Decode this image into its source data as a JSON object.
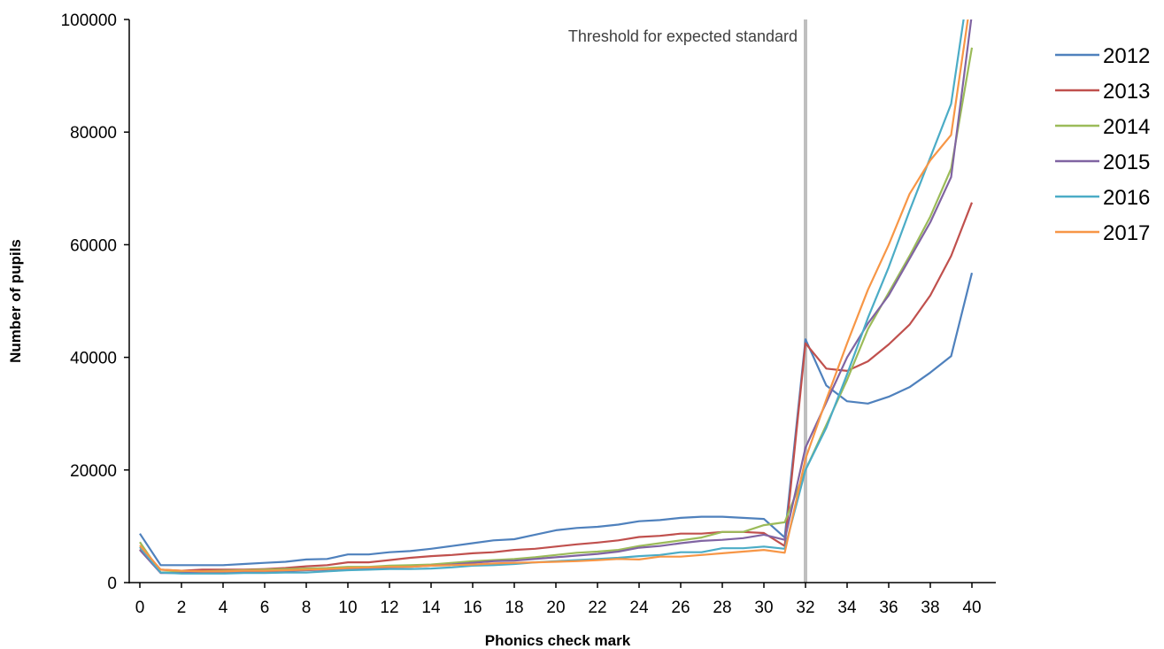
{
  "chart_data": {
    "type": "line",
    "title": "",
    "xlabel": "Phonics check mark",
    "ylabel": "Number of pupils",
    "xlim": [
      0,
      40
    ],
    "ylim": [
      0,
      100000
    ],
    "x_ticks": [
      0,
      2,
      4,
      6,
      8,
      10,
      12,
      14,
      16,
      18,
      20,
      22,
      24,
      26,
      28,
      30,
      32,
      34,
      36,
      38,
      40
    ],
    "y_ticks": [
      0,
      20000,
      40000,
      60000,
      80000,
      100000
    ],
    "grid": false,
    "legend_position": "right",
    "threshold": {
      "x": 32,
      "label": "Threshold for expected standard",
      "color": "#bfbfbf"
    },
    "x": [
      0,
      1,
      2,
      3,
      4,
      5,
      6,
      7,
      8,
      9,
      10,
      11,
      12,
      13,
      14,
      15,
      16,
      17,
      18,
      19,
      20,
      21,
      22,
      23,
      24,
      25,
      26,
      27,
      28,
      29,
      30,
      31,
      32,
      33,
      34,
      35,
      36,
      37,
      38,
      39,
      40
    ],
    "series": [
      {
        "name": "2012",
        "color": "#4f81bd",
        "values": [
          8700,
          3100,
          3100,
          3100,
          3100,
          3300,
          3500,
          3700,
          4100,
          4200,
          5000,
          5000,
          5400,
          5600,
          6000,
          6500,
          7000,
          7500,
          7700,
          8500,
          9300,
          9700,
          9900,
          10300,
          10900,
          11100,
          11500,
          11700,
          11700,
          11500,
          11300,
          8000,
          43200,
          35000,
          32200,
          31800,
          33000,
          34700,
          37300,
          40200,
          55000
        ]
      },
      {
        "name": "2013",
        "color": "#c0504d",
        "values": [
          5900,
          2300,
          2100,
          2300,
          2300,
          2300,
          2400,
          2600,
          2900,
          3100,
          3600,
          3600,
          4000,
          4400,
          4700,
          4900,
          5200,
          5400,
          5800,
          6000,
          6400,
          6800,
          7100,
          7500,
          8100,
          8300,
          8700,
          8700,
          9000,
          9000,
          8800,
          6500,
          42500,
          38000,
          37600,
          39300,
          42300,
          45800,
          51000,
          58000,
          67500
        ]
      },
      {
        "name": "2014",
        "color": "#9bbb59",
        "values": [
          7200,
          1800,
          1900,
          2000,
          2100,
          2200,
          2300,
          2400,
          2500,
          2600,
          2800,
          2800,
          3000,
          3100,
          3200,
          3500,
          3800,
          4000,
          4200,
          4500,
          4900,
          5300,
          5500,
          5800,
          6500,
          7000,
          7500,
          8000,
          9000,
          9000,
          10200,
          10700,
          20000,
          28000,
          36000,
          45000,
          51500,
          58000,
          65000,
          73500,
          95000
        ]
      },
      {
        "name": "2015",
        "color": "#8064a2",
        "values": [
          5800,
          1700,
          1700,
          1800,
          1800,
          1900,
          2000,
          2100,
          2200,
          2300,
          2500,
          2600,
          2700,
          2800,
          3000,
          3200,
          3500,
          3800,
          3900,
          4200,
          4500,
          4800,
          5100,
          5500,
          6200,
          6500,
          7000,
          7400,
          7600,
          7900,
          8500,
          7600,
          24000,
          32000,
          40000,
          46000,
          51000,
          57500,
          64000,
          72000,
          101000
        ]
      },
      {
        "name": "2016",
        "color": "#4bacc6",
        "values": [
          6300,
          1800,
          1600,
          1600,
          1600,
          1700,
          1700,
          1800,
          1800,
          2000,
          2200,
          2300,
          2400,
          2400,
          2500,
          2700,
          3000,
          3100,
          3300,
          3600,
          3800,
          4000,
          4200,
          4400,
          4700,
          4900,
          5400,
          5400,
          6100,
          6100,
          6400,
          6000,
          20000,
          27500,
          37000,
          47000,
          56000,
          66000,
          75500,
          85000,
          110000
        ]
      },
      {
        "name": "2017",
        "color": "#f79646",
        "values": [
          6600,
          2300,
          2100,
          2000,
          2000,
          2100,
          2100,
          2200,
          2300,
          2400,
          2600,
          2700,
          2800,
          2800,
          3000,
          3100,
          3200,
          3400,
          3500,
          3600,
          3700,
          3800,
          4000,
          4200,
          4100,
          4600,
          4600,
          4900,
          5200,
          5500,
          5800,
          5300,
          22000,
          32500,
          42500,
          52000,
          60000,
          69000,
          75000,
          79500,
          105000
        ]
      }
    ]
  }
}
